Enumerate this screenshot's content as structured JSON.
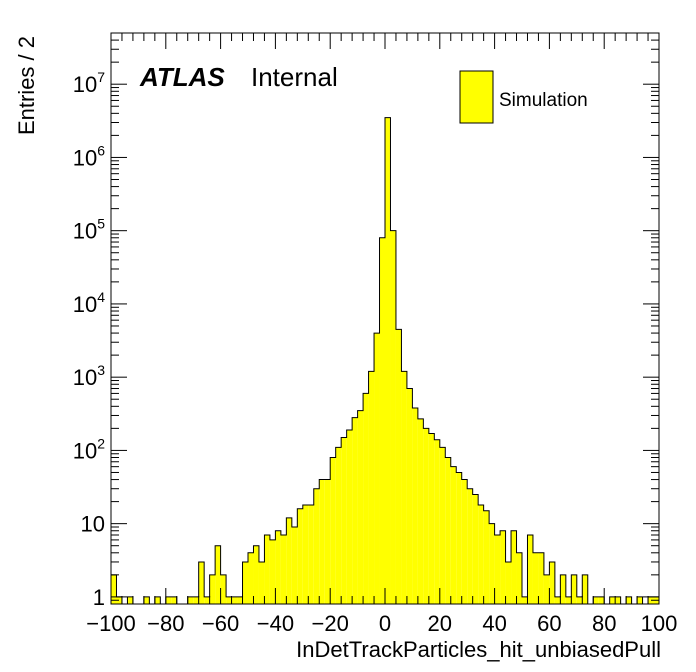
{
  "chart_data": {
    "type": "bar",
    "xlabel": "InDetTrackParticles_hit_unbiasedPull",
    "ylabel": "Entries / 2",
    "xlim": [
      -100,
      100
    ],
    "ylim": [
      0.8,
      50000000
    ],
    "log_y": true,
    "bin_width": 2,
    "x_ticks": [
      "−100",
      "−80",
      "−60",
      "−40",
      "−20",
      "0",
      "20",
      "40",
      "60",
      "80",
      "100"
    ],
    "y_ticks": [
      {
        "value": 1,
        "base": "1",
        "exp": ""
      },
      {
        "value": 10,
        "base": "10",
        "exp": ""
      },
      {
        "value": 100,
        "base": "10",
        "exp": "2"
      },
      {
        "value": 1000,
        "base": "10",
        "exp": "3"
      },
      {
        "value": 10000,
        "base": "10",
        "exp": "4"
      },
      {
        "value": 100000,
        "base": "10",
        "exp": "5"
      },
      {
        "value": 1000000,
        "base": "10",
        "exp": "6"
      },
      {
        "value": 10000000,
        "base": "10",
        "exp": "7"
      }
    ],
    "annotation": {
      "bold": "ATLAS",
      "text": "Internal"
    },
    "legend": {
      "label": "Simulation",
      "position": "top-right",
      "color": "#ffff00"
    },
    "fill_color": "#ffff00",
    "line_color": "#000000",
    "bins": [
      {
        "x": -100,
        "y": 2
      },
      {
        "x": -98,
        "y": 1
      },
      {
        "x": -94,
        "y": 1
      },
      {
        "x": -88,
        "y": 1
      },
      {
        "x": -84,
        "y": 1
      },
      {
        "x": -80,
        "y": 1
      },
      {
        "x": -78,
        "y": 1
      },
      {
        "x": -72,
        "y": 1
      },
      {
        "x": -70,
        "y": 1
      },
      {
        "x": -68,
        "y": 3
      },
      {
        "x": -66,
        "y": 1
      },
      {
        "x": -64,
        "y": 2
      },
      {
        "x": -62,
        "y": 5
      },
      {
        "x": -60,
        "y": 2
      },
      {
        "x": -58,
        "y": 1
      },
      {
        "x": -56,
        "y": 1
      },
      {
        "x": -54,
        "y": 1
      },
      {
        "x": -52,
        "y": 3
      },
      {
        "x": -50,
        "y": 4
      },
      {
        "x": -48,
        "y": 5
      },
      {
        "x": -46,
        "y": 3
      },
      {
        "x": -44,
        "y": 7
      },
      {
        "x": -42,
        "y": 6
      },
      {
        "x": -40,
        "y": 8
      },
      {
        "x": -38,
        "y": 7
      },
      {
        "x": -36,
        "y": 12
      },
      {
        "x": -34,
        "y": 9
      },
      {
        "x": -32,
        "y": 16
      },
      {
        "x": -30,
        "y": 18
      },
      {
        "x": -28,
        "y": 18
      },
      {
        "x": -26,
        "y": 30
      },
      {
        "x": -24,
        "y": 40
      },
      {
        "x": -22,
        "y": 40
      },
      {
        "x": -20,
        "y": 80
      },
      {
        "x": -18,
        "y": 110
      },
      {
        "x": -16,
        "y": 150
      },
      {
        "x": -14,
        "y": 190
      },
      {
        "x": -12,
        "y": 280
      },
      {
        "x": -10,
        "y": 350
      },
      {
        "x": -8,
        "y": 600
      },
      {
        "x": -6,
        "y": 1200
      },
      {
        "x": -4,
        "y": 4000
      },
      {
        "x": -2,
        "y": 80000
      },
      {
        "x": 0,
        "y": 3500000
      },
      {
        "x": 2,
        "y": 100000
      },
      {
        "x": 4,
        "y": 4500
      },
      {
        "x": 6,
        "y": 1200
      },
      {
        "x": 8,
        "y": 700
      },
      {
        "x": 10,
        "y": 380
      },
      {
        "x": 12,
        "y": 270
      },
      {
        "x": 14,
        "y": 200
      },
      {
        "x": 16,
        "y": 170
      },
      {
        "x": 18,
        "y": 140
      },
      {
        "x": 20,
        "y": 110
      },
      {
        "x": 22,
        "y": 80
      },
      {
        "x": 24,
        "y": 60
      },
      {
        "x": 26,
        "y": 50
      },
      {
        "x": 28,
        "y": 40
      },
      {
        "x": 30,
        "y": 30
      },
      {
        "x": 32,
        "y": 25
      },
      {
        "x": 34,
        "y": 18
      },
      {
        "x": 36,
        "y": 15
      },
      {
        "x": 38,
        "y": 10
      },
      {
        "x": 40,
        "y": 7
      },
      {
        "x": 42,
        "y": 8
      },
      {
        "x": 44,
        "y": 3
      },
      {
        "x": 46,
        "y": 8
      },
      {
        "x": 48,
        "y": 4
      },
      {
        "x": 50,
        "y": 1
      },
      {
        "x": 52,
        "y": 7
      },
      {
        "x": 54,
        "y": 4
      },
      {
        "x": 56,
        "y": 4
      },
      {
        "x": 58,
        "y": 2
      },
      {
        "x": 60,
        "y": 3
      },
      {
        "x": 62,
        "y": 1
      },
      {
        "x": 64,
        "y": 2
      },
      {
        "x": 66,
        "y": 1
      },
      {
        "x": 68,
        "y": 2
      },
      {
        "x": 70,
        "y": 1
      },
      {
        "x": 72,
        "y": 2
      },
      {
        "x": 76,
        "y": 1
      },
      {
        "x": 78,
        "y": 1
      },
      {
        "x": 82,
        "y": 1
      },
      {
        "x": 84,
        "y": 1
      },
      {
        "x": 88,
        "y": 1
      },
      {
        "x": 92,
        "y": 1
      },
      {
        "x": 96,
        "y": 1
      },
      {
        "x": 98,
        "y": 1
      }
    ]
  }
}
